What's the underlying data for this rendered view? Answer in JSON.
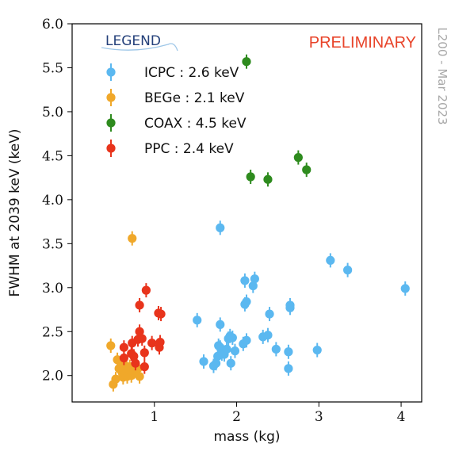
{
  "chart_data": {
    "type": "scatter",
    "xlabel": "mass (kg)",
    "ylabel": "FWHM at 2039 keV (keV)",
    "xlim": [
      0.0,
      4.25
    ],
    "ylim": [
      1.7,
      6.0
    ],
    "x_ticks": [
      1,
      2,
      3,
      4
    ],
    "x_tick_labels": [
      "1",
      "2",
      "3",
      "4"
    ],
    "y_ticks": [
      2.0,
      2.5,
      3.0,
      3.5,
      4.0,
      4.5,
      5.0,
      5.5,
      6.0
    ],
    "y_tick_labels": [
      "2.0",
      "2.5",
      "3.0",
      "3.5",
      "4.0",
      "4.5",
      "5.0",
      "5.5",
      "6.0"
    ],
    "grid": false,
    "legend_title": "LEGEND",
    "legend_position": "top-left",
    "annotation": "PRELIMINARY",
    "annotation_color": "#e8442a",
    "side_note": "L200 - Mar 2023",
    "series": [
      {
        "name": "ICPC : 2.6 keV",
        "color": "#5bb8f0",
        "points": [
          [
            1.52,
            2.63
          ],
          [
            1.6,
            2.16
          ],
          [
            1.72,
            2.11
          ],
          [
            1.75,
            2.14
          ],
          [
            1.77,
            2.22
          ],
          [
            1.78,
            2.34
          ],
          [
            1.8,
            2.32
          ],
          [
            1.8,
            2.58
          ],
          [
            1.8,
            3.68
          ],
          [
            1.82,
            2.25
          ],
          [
            1.85,
            2.24
          ],
          [
            1.88,
            2.3
          ],
          [
            1.9,
            2.42
          ],
          [
            1.92,
            2.45
          ],
          [
            1.93,
            2.14
          ],
          [
            1.95,
            2.43
          ],
          [
            1.98,
            2.28
          ],
          [
            2.08,
            2.36
          ],
          [
            2.1,
            2.81
          ],
          [
            2.1,
            3.08
          ],
          [
            2.12,
            2.84
          ],
          [
            2.12,
            2.4
          ],
          [
            2.2,
            3.02
          ],
          [
            2.22,
            3.1
          ],
          [
            2.32,
            2.44
          ],
          [
            2.38,
            2.46
          ],
          [
            2.4,
            2.7
          ],
          [
            2.48,
            2.3
          ],
          [
            2.63,
            2.27
          ],
          [
            2.63,
            2.08
          ],
          [
            2.65,
            2.8
          ],
          [
            2.65,
            2.77
          ],
          [
            2.98,
            2.29
          ],
          [
            3.14,
            3.31
          ],
          [
            3.35,
            3.2
          ],
          [
            4.05,
            2.99
          ]
        ]
      },
      {
        "name": "BEGe : 2.1 keV",
        "color": "#f0a82a",
        "points": [
          [
            0.47,
            2.34
          ],
          [
            0.5,
            1.9
          ],
          [
            0.53,
            1.96
          ],
          [
            0.55,
            2.18
          ],
          [
            0.57,
            2.08
          ],
          [
            0.6,
            2.05
          ],
          [
            0.62,
            1.98
          ],
          [
            0.63,
            2.13
          ],
          [
            0.65,
            2.02
          ],
          [
            0.67,
            1.99
          ],
          [
            0.7,
            2.1
          ],
          [
            0.72,
            2.0
          ],
          [
            0.73,
            3.56
          ],
          [
            0.75,
            2.04
          ],
          [
            0.77,
            2.12
          ],
          [
            0.8,
            2.08
          ],
          [
            0.82,
            1.99
          ]
        ]
      },
      {
        "name": "COAX : 4.5 keV",
        "color": "#2e8b1e",
        "points": [
          [
            2.12,
            5.57
          ],
          [
            2.17,
            4.26
          ],
          [
            2.38,
            4.23
          ],
          [
            2.75,
            4.48
          ],
          [
            2.85,
            4.34
          ]
        ]
      },
      {
        "name": "PPC : 2.4 keV",
        "color": "#e8341c",
        "points": [
          [
            0.63,
            2.32
          ],
          [
            0.63,
            2.2
          ],
          [
            0.72,
            2.25
          ],
          [
            0.73,
            2.37
          ],
          [
            0.75,
            2.22
          ],
          [
            0.77,
            2.14
          ],
          [
            0.8,
            2.41
          ],
          [
            0.82,
            2.5
          ],
          [
            0.82,
            2.8
          ],
          [
            0.85,
            2.42
          ],
          [
            0.88,
            2.26
          ],
          [
            0.88,
            2.1
          ],
          [
            0.9,
            2.97
          ],
          [
            0.97,
            2.37
          ],
          [
            1.05,
            2.71
          ],
          [
            1.06,
            2.32
          ],
          [
            1.07,
            2.38
          ],
          [
            1.08,
            2.7
          ]
        ]
      }
    ]
  }
}
